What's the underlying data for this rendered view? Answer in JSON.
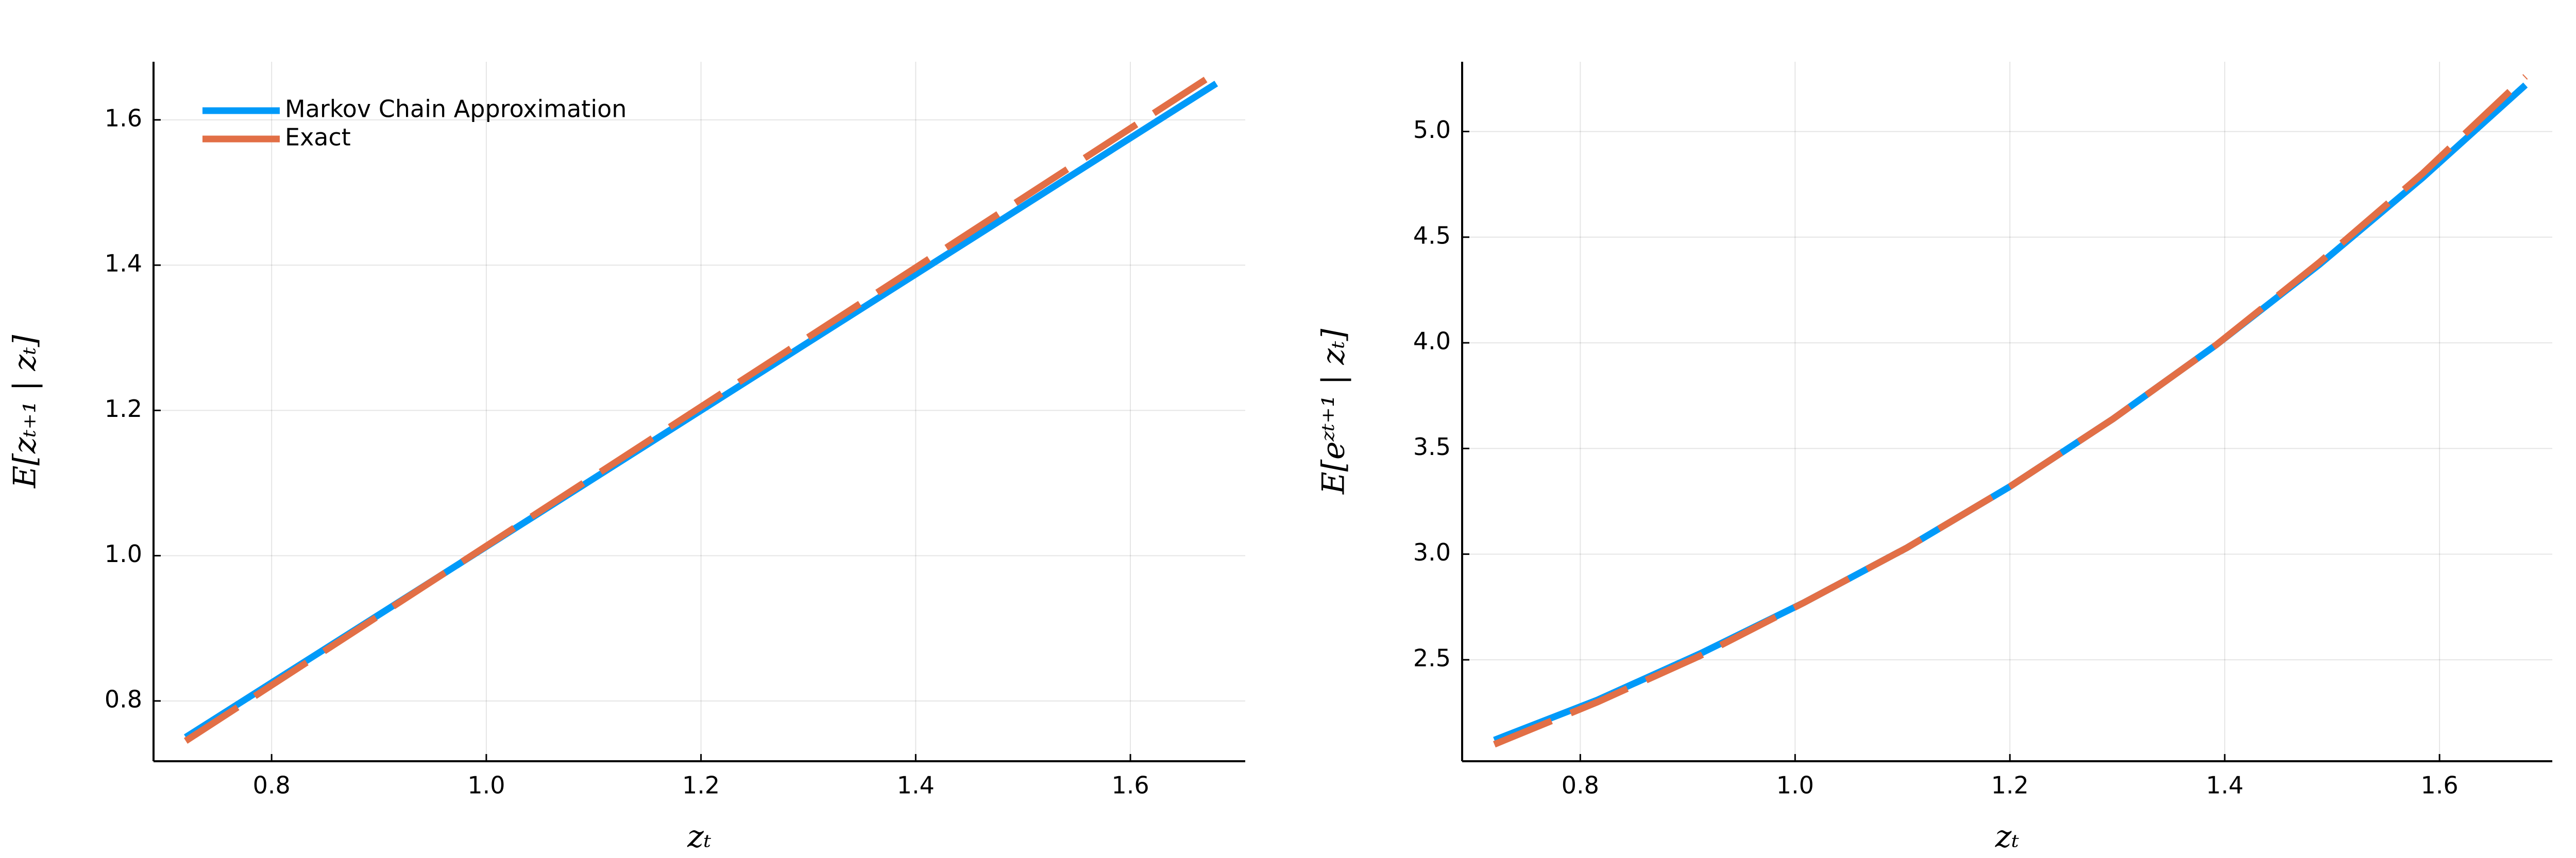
{
  "chart_data": [
    {
      "type": "line",
      "xlabel": "zₜ",
      "ylabel": "E[zₜ₊₁ | zₜ]",
      "x": [
        0.72,
        0.816,
        0.912,
        1.008,
        1.104,
        1.2,
        1.296,
        1.392,
        1.488,
        1.584,
        1.68
      ],
      "series": [
        {
          "name": "Markov Chain Approximation",
          "color": "#009af9",
          "dashed": false,
          "values": [
            0.75,
            0.84,
            0.93,
            1.02,
            1.11,
            1.2,
            1.29,
            1.38,
            1.47,
            1.56,
            1.65
          ]
        },
        {
          "name": "Exact",
          "color": "#e26f46",
          "dashed": true,
          "values": [
            0.745,
            0.837,
            0.929,
            1.021,
            1.113,
            1.205,
            1.297,
            1.389,
            1.481,
            1.573,
            1.665
          ]
        }
      ],
      "xlim": [
        0.69,
        1.707
      ],
      "xticks": [
        0.8,
        {
          "value": 1,
          "label": "1.0"
        },
        1.2,
        1.4,
        1.6
      ],
      "ylim": [
        0.717,
        1.68
      ],
      "yticks": [
        0.8,
        {
          "value": 1,
          "label": "1.0"
        },
        1.2,
        1.4,
        1.6
      ],
      "grid": true,
      "legend": "top-left"
    },
    {
      "type": "line",
      "xlabel": "zₜ",
      "ylabel": "E[eᶻᵗ⁺¹ | zₜ]",
      "x": [
        0.72,
        0.816,
        0.912,
        1.008,
        1.104,
        1.2,
        1.296,
        1.392,
        1.488,
        1.584,
        1.68
      ],
      "series": [
        {
          "color": "#009af9",
          "dashed": false,
          "values": [
            2.12,
            2.31,
            2.53,
            2.77,
            3.03,
            3.32,
            3.64,
            3.99,
            4.37,
            4.78,
            5.22
          ]
        },
        {
          "color": "#e26f46",
          "dashed": true,
          "values": [
            2.1,
            2.3,
            2.52,
            2.77,
            3.03,
            3.32,
            3.64,
            3.99,
            4.38,
            4.8,
            5.26
          ]
        }
      ],
      "xlim": [
        0.69,
        1.705
      ],
      "xticks": [
        0.8,
        {
          "value": 1,
          "label": "1.0"
        },
        1.2,
        1.4,
        1.6
      ],
      "ylim": [
        2.02,
        5.33
      ],
      "yticks": [
        2.5,
        {
          "value": 3,
          "label": "3.0"
        },
        3.5,
        {
          "value": 4,
          "label": "4.0"
        },
        4.5,
        {
          "value": 5,
          "label": "5.0"
        }
      ],
      "grid": true
    }
  ]
}
